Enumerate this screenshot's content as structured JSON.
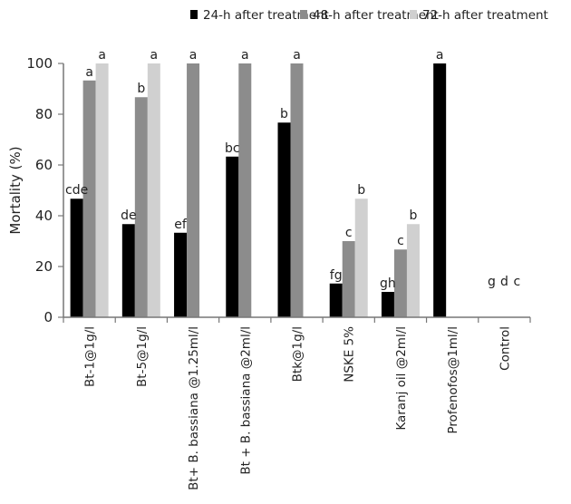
{
  "chart_data": {
    "type": "bar",
    "ylabel": "Mortality (%)",
    "ylim": [
      0,
      100
    ],
    "yticks": [
      0,
      20,
      40,
      60,
      80,
      100
    ],
    "grid": false,
    "legend_position": "top",
    "categories": [
      "Bt-1@1g/l",
      "Bt-5@1g/l",
      "Bt+ B. bassiana  @1.25ml/l",
      "Bt + B. bassiana @2ml/l",
      "Btk@1g/l",
      "NSKE 5%",
      "Karanj oil @2ml/l",
      "Profenofos@1ml/l",
      "Control"
    ],
    "series": [
      {
        "name": "24-h after treatment",
        "color": "#000000",
        "values": [
          46.7,
          36.7,
          33.3,
          63.3,
          76.7,
          13.3,
          10.0,
          100,
          0
        ],
        "labels": [
          "cde",
          "de",
          "ef",
          "bc",
          "b",
          "fg",
          "gh",
          "a",
          "g"
        ]
      },
      {
        "name": "48-h after treatment",
        "color": "#8c8c8c",
        "values": [
          93.3,
          86.7,
          100,
          100,
          100,
          30.0,
          26.7,
          0,
          0
        ],
        "labels": [
          "a",
          "b",
          "a",
          "a",
          "a",
          "c",
          "c",
          "",
          "d"
        ]
      },
      {
        "name": "72-h after treatment",
        "color": "#d0d0d0",
        "values": [
          100,
          100,
          0,
          0,
          0,
          46.7,
          36.7,
          0,
          0
        ],
        "labels": [
          "a",
          "a",
          "",
          "",
          "",
          "b",
          "b",
          "",
          "c"
        ]
      }
    ]
  }
}
